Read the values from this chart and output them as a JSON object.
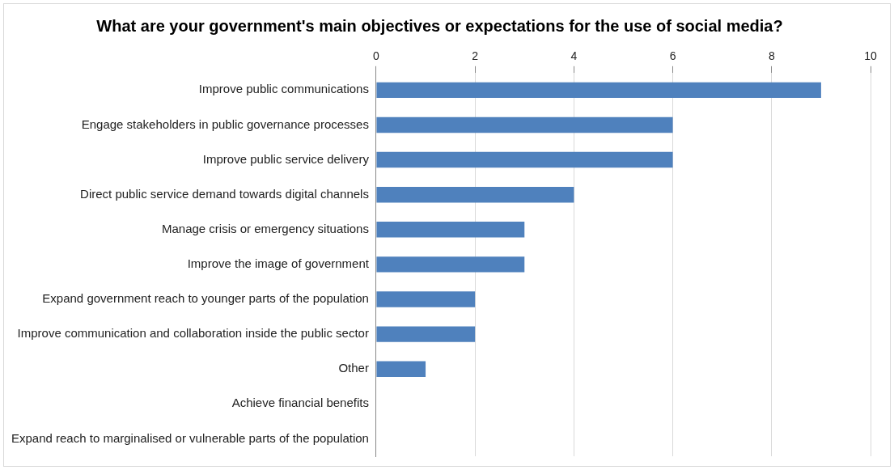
{
  "chart_data": {
    "type": "bar",
    "orientation": "horizontal",
    "title": "What are your government's main objectives or expectations for the use of social media?",
    "categories": [
      "Improve public communications",
      "Engage stakeholders in public governance processes",
      "Improve public service delivery",
      "Direct public service demand towards digital channels",
      "Manage crisis or emergency situations",
      "Improve the image of government",
      "Expand government reach to younger parts of the population",
      "Improve communication and collaboration inside the public sector",
      "Other",
      "Achieve financial benefits",
      "Expand reach to marginalised or vulnerable parts of the population"
    ],
    "values": [
      9,
      6,
      6,
      4,
      3,
      3,
      2,
      2,
      1,
      0,
      0
    ],
    "color": "#4f81bd",
    "xlim": [
      0,
      10
    ],
    "xticks": [
      0,
      2,
      4,
      6,
      8,
      10
    ],
    "grid": "x",
    "legend": false
  }
}
